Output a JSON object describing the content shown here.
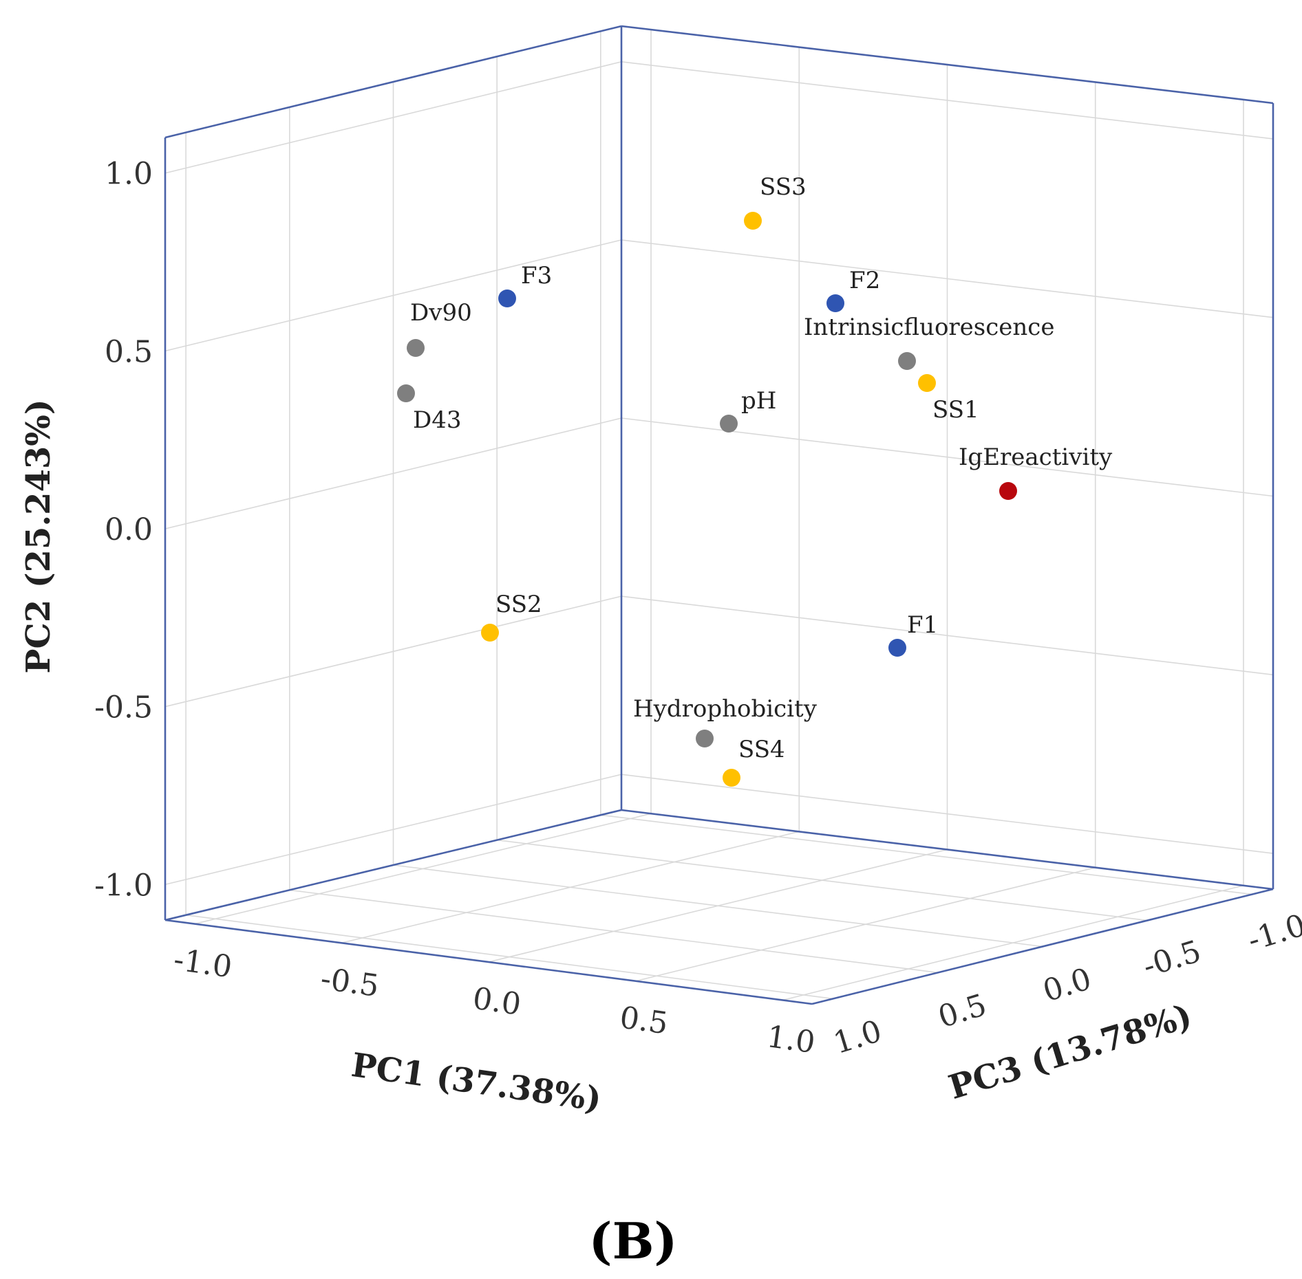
{
  "colors": {
    "frame": "#4a62a8",
    "grid": "#d9d9d9",
    "blue": "#2f55b2",
    "gray": "#7f7f7f",
    "yellow": "#ffc000",
    "red": "#b8070d"
  },
  "panel_label": "(B)",
  "chart_data": {
    "type": "scatter",
    "subtype": "3d-loadings",
    "title": "",
    "xlabel": "PC1 (37.38%)",
    "ylabel": "PC2 (25.243%)",
    "zlabel": "PC3 (13.78%)",
    "xlim": [
      -1.1,
      1.1
    ],
    "ylim": [
      -1.1,
      1.1
    ],
    "zlim": [
      -1.1,
      1.1
    ],
    "grid": true,
    "x_ticks": [
      "-1.0",
      "-0.5",
      "0.0",
      "0.5",
      "1.0"
    ],
    "y_ticks": [
      "1.0",
      "0.5",
      "0.0",
      "-0.5",
      "-1.0"
    ],
    "z_ticks": [
      "1.0",
      "0.5",
      "0.0",
      "-0.5",
      "-1.0"
    ],
    "points": [
      {
        "label": "SS3",
        "x": 0.55,
        "y": 0.78,
        "z": -0.1,
        "color": "yellow"
      },
      {
        "label": "F3",
        "x": -0.55,
        "y": 0.87,
        "z": 0.35,
        "color": "blue"
      },
      {
        "label": "F2",
        "x": 0.6,
        "y": 0.6,
        "z": -0.45,
        "color": "blue"
      },
      {
        "label": "Dv90",
        "x": -0.75,
        "y": 0.72,
        "z": 0.6,
        "color": "gray"
      },
      {
        "label": "Intrinsicfluorescence",
        "x": 0.95,
        "y": 0.42,
        "z": -0.25,
        "color": "gray"
      },
      {
        "label": "D43",
        "x": -0.75,
        "y": 0.6,
        "z": 0.6,
        "color": "gray"
      },
      {
        "label": "SS1",
        "x": 1.0,
        "y": 0.4,
        "z": -0.2,
        "color": "yellow"
      },
      {
        "label": "pH",
        "x": 0.2,
        "y": 0.3,
        "z": 0.3,
        "color": "gray"
      },
      {
        "label": "IgEreactivity",
        "x": 0.95,
        "y": 0.15,
        "z": -0.8,
        "color": "red"
      },
      {
        "label": "SS2",
        "x": -0.3,
        "y": -0.03,
        "z": 0.8,
        "color": "yellow"
      },
      {
        "label": "F1",
        "x": 0.55,
        "y": -0.25,
        "z": -0.7,
        "color": "blue"
      },
      {
        "label": "Hydrophobicity",
        "x": 0.25,
        "y": -0.57,
        "z": 0.2,
        "color": "gray"
      },
      {
        "label": "SS4",
        "x": 0.35,
        "y": -0.65,
        "z": 0.2,
        "color": "yellow"
      }
    ]
  }
}
